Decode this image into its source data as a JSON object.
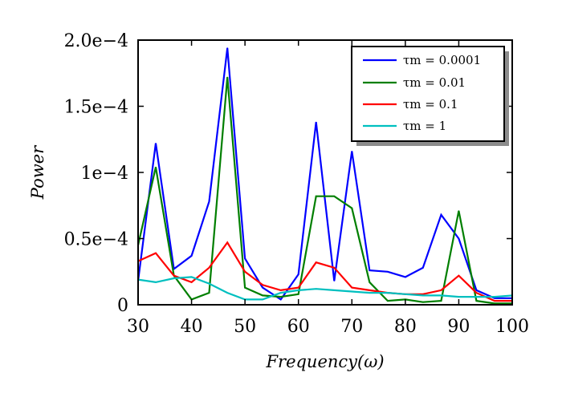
{
  "chart_data": {
    "type": "line",
    "title": "",
    "xlabel": "Frequency(ω)",
    "ylabel": "Power",
    "xlim": [
      30,
      100
    ],
    "ylim": [
      0,
      0.0002
    ],
    "xticks": [
      30,
      40,
      50,
      60,
      70,
      80,
      90,
      100
    ],
    "xtick_labels": [
      "30",
      "40",
      "50",
      "60",
      "70",
      "80",
      "90",
      "100"
    ],
    "yticks": [
      0,
      5e-05,
      0.0001,
      0.00015,
      0.0002
    ],
    "ytick_labels": [
      "0",
      "0.5e−4",
      "1e−4",
      "1.5e−4",
      "2.0e−4"
    ],
    "grid": false,
    "legend_position": "top-right",
    "x": [
      30,
      33.3,
      36.7,
      40,
      43.3,
      46.7,
      50,
      53.3,
      56.7,
      60,
      63.3,
      66.7,
      70,
      73.3,
      76.7,
      80,
      83.3,
      86.7,
      90,
      93.3,
      96.7,
      100
    ],
    "series": [
      {
        "name": "τm = 0.0001",
        "color": "#0000ff",
        "values": [
          1.8e-05,
          0.000122,
          2.7e-05,
          3.7e-05,
          7.8e-05,
          0.000194,
          3.5e-05,
          1.3e-05,
          4e-06,
          2.3e-05,
          0.000138,
          1.8e-05,
          0.000116,
          2.6e-05,
          2.5e-05,
          2.1e-05,
          2.8e-05,
          6.8e-05,
          5e-05,
          1.1e-05,
          5e-06,
          5e-06
        ]
      },
      {
        "name": "τm = 0.01",
        "color": "#007f00",
        "values": [
          4.5e-05,
          0.000104,
          2.2e-05,
          4e-06,
          9e-06,
          0.000172,
          1.3e-05,
          7e-06,
          6e-06,
          8e-06,
          8.2e-05,
          8.2e-05,
          7.3e-05,
          1.7e-05,
          3e-06,
          4e-06,
          2e-06,
          3e-06,
          7.1e-05,
          3e-06,
          1e-06,
          1e-06
        ]
      },
      {
        "name": "τm = 0.1",
        "color": "#ff0000",
        "values": [
          3.3e-05,
          3.9e-05,
          2.2e-05,
          1.7e-05,
          2.8e-05,
          4.7e-05,
          2.5e-05,
          1.5e-05,
          1.1e-05,
          1.3e-05,
          3.2e-05,
          2.8e-05,
          1.3e-05,
          1.1e-05,
          9e-06,
          8e-06,
          8e-06,
          1.1e-05,
          2.2e-05,
          9e-06,
          3e-06,
          3e-06
        ]
      },
      {
        "name": "τm = 1",
        "color": "#00bfbf",
        "values": [
          1.9e-05,
          1.7e-05,
          2e-05,
          2.1e-05,
          1.6e-05,
          9e-06,
          4e-06,
          4e-06,
          9e-06,
          1.1e-05,
          1.2e-05,
          1.1e-05,
          1e-05,
          9e-06,
          9e-06,
          8e-06,
          7e-06,
          7e-06,
          6e-06,
          6e-06,
          6e-06,
          7e-06
        ]
      }
    ]
  }
}
